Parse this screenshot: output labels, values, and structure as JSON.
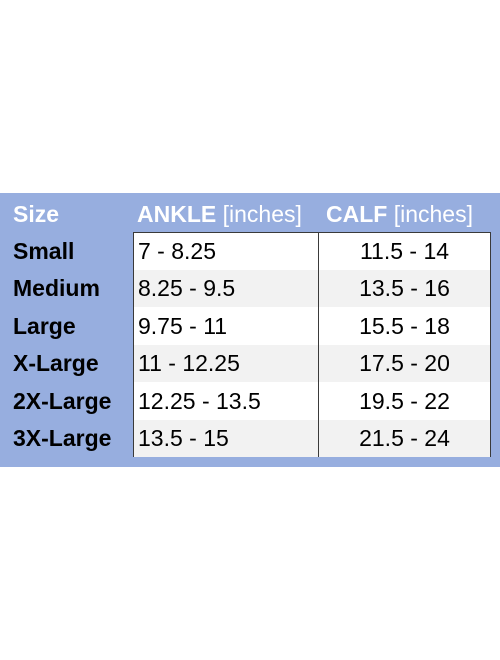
{
  "table": {
    "header": {
      "size": "Size",
      "ankle": {
        "name": "ANKLE",
        "unit": "[inches]"
      },
      "calf": {
        "name": "CALF",
        "unit": "[inches]"
      }
    },
    "rows": [
      [
        "Small",
        "7 - 8.25",
        "11.5 - 14"
      ],
      [
        "Medium",
        "8.25 - 9.5",
        "13.5 - 16"
      ],
      [
        "Large",
        "9.75 - 11",
        "15.5 - 18"
      ],
      [
        "X-Large",
        "11 - 12.25",
        "17.5 - 20"
      ],
      [
        "2X-Large",
        "12.25 - 13.5",
        "19.5 - 22"
      ],
      [
        "3X-Large",
        "13.5 - 15",
        "21.5 - 24"
      ]
    ]
  }
}
